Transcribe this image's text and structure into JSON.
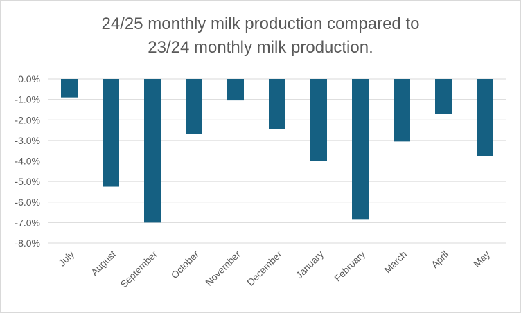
{
  "chart_data": {
    "type": "bar",
    "title_lines": [
      "24/25 monthly milk production compared to",
      "23/24 monthly milk production."
    ],
    "categories": [
      "July",
      "August",
      "September",
      "October",
      "November",
      "December",
      "January",
      "February",
      "March",
      "April",
      "May"
    ],
    "values": [
      -0.9,
      -5.25,
      -7.0,
      -2.68,
      -1.05,
      -2.45,
      -4.0,
      -6.83,
      -3.05,
      -1.7,
      -3.75
    ],
    "ylim": [
      -8.0,
      0.0
    ],
    "yticks": [
      "0.0%",
      "-1.0%",
      "-2.0%",
      "-3.0%",
      "-4.0%",
      "-5.0%",
      "-6.0%",
      "-7.0%",
      "-8.0%"
    ],
    "grid": true,
    "bar_color": "#156082",
    "xlabel": "",
    "ylabel": ""
  }
}
